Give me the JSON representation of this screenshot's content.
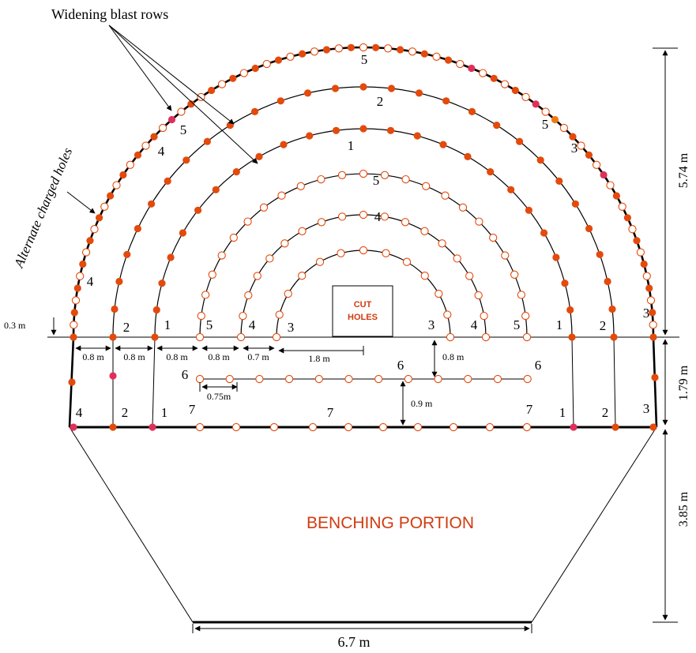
{
  "colors": {
    "line": "#000000",
    "charged": "#e34a0c",
    "charged_alt": "#e0305a",
    "charged_orange": "#f07a10",
    "open": "#e34a0c",
    "label_red": "#d03c10"
  },
  "annotations": {
    "widening": "Widening blast rows",
    "alternate": "Alternate charged holes",
    "cut_line1": "CUT",
    "cut_line2": "HOLES",
    "benching": "BENCHING PORTION"
  },
  "dimensions": {
    "height_arch": "5.74 m",
    "height_wall": "1.79 m",
    "height_bench": "3.85 m",
    "base_width": "6.7 m",
    "springline": "0.3 m",
    "spacing_08_1": "0.8 m",
    "spacing_08_2": "0.8 m",
    "spacing_08_3": "0.8 m",
    "spacing_08_4": "0.8 m",
    "spacing_07": "0.7 m",
    "spacing_18": "1.8 m",
    "vert_08": "0.8 m",
    "spacing_075": "0.75m",
    "vert_09": "0.9 m"
  },
  "row_labels": {
    "top_5": "5",
    "top_2": "2",
    "top_1": "1",
    "mid_5": "5",
    "mid_4": "4",
    "left_5": "5",
    "left_4": "4",
    "left_wall_4": "4",
    "right_5": "5",
    "right_3": "3",
    "spring_l2": "2",
    "spring_l1": "1",
    "spring_l5": "5",
    "spring_l4": "4",
    "spring_l3": "3",
    "spring_r3": "3",
    "spring_r4": "4",
    "spring_r5": "5",
    "spring_r1": "1",
    "spring_r2": "2",
    "spring_r3b": "3",
    "row6_left": "6",
    "row6_mid": "6",
    "row6_right": "6",
    "base_4": "4",
    "base_2": "2",
    "base_1": "1",
    "base_7a": "7",
    "base_7b": "7",
    "base_7c": "7",
    "base_1r": "1",
    "base_2r": "2",
    "base_3r": "3"
  }
}
